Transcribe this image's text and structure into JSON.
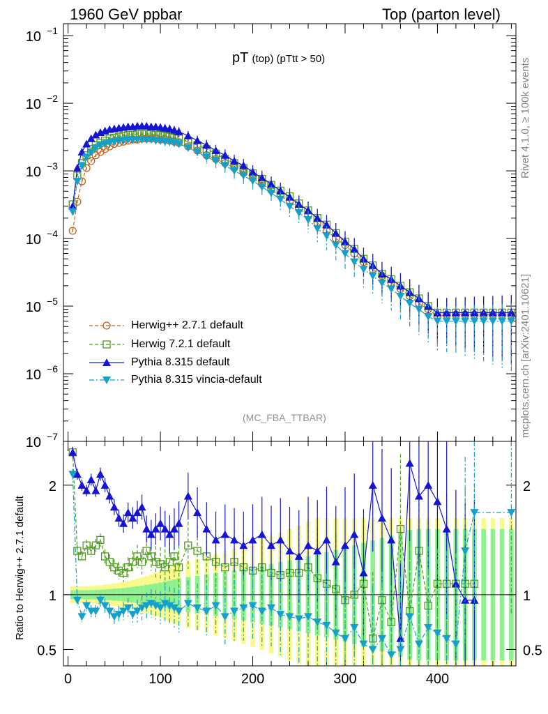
{
  "header": {
    "left": "1960 GeV ppbar",
    "right": "Top (parton level)"
  },
  "side_labels": {
    "rivet": "Rivet 4.1.0, ≥ 100k events",
    "mcplots": "mcplots.cern.ch [arXiv:2401.10621]"
  },
  "plot_title": {
    "main": "pT",
    "sub": "(top) (pTtt > 50)"
  },
  "analysis_tag": "(MC_FBA_TTBAR)",
  "ratio_ylabel": "Ratio to Herwig++ 2.7.1 default",
  "colors": {
    "herwigpp": "#c0641e",
    "herwig7": "#4f9a1e",
    "pythia": "#1414d2",
    "vincia": "#14a0c8",
    "band_inner": "#8ff08f",
    "band_outer": "#fafa8c"
  },
  "chart_data": [
    {
      "type": "scatter",
      "panel": "main",
      "yscale": "log",
      "xlim": [
        -5,
        485
      ],
      "ylim": [
        1e-07,
        0.15
      ],
      "yticks": [
        {
          "value": 1e-07,
          "label_base": "10",
          "label_exp": "−7"
        },
        {
          "value": 1e-06,
          "label_base": "10",
          "label_exp": "−6"
        },
        {
          "value": 1e-05,
          "label_base": "10",
          "label_exp": "−5"
        },
        {
          "value": 0.0001,
          "label_base": "10",
          "label_exp": "−4"
        },
        {
          "value": 0.001,
          "label_base": "10",
          "label_exp": "−3"
        },
        {
          "value": 0.01,
          "label_base": "10",
          "label_exp": "−2"
        },
        {
          "value": 0.1,
          "label_base": "10",
          "label_exp": "−1"
        }
      ],
      "legend_position": "middle-left",
      "series": [
        {
          "name": "Herwig++ 2.7.1 default",
          "marker": "open-circle",
          "line": "dashed",
          "x": [
            5,
            10,
            15,
            20,
            25,
            30,
            35,
            40,
            45,
            50,
            55,
            60,
            65,
            70,
            75,
            80,
            85,
            90,
            95,
            100,
            105,
            110,
            115,
            120,
            130,
            140,
            150,
            160,
            170,
            180,
            190,
            200,
            210,
            220,
            230,
            240,
            250,
            260,
            270,
            280,
            290,
            300,
            310,
            320,
            330,
            340,
            350,
            360,
            370,
            380,
            390,
            400,
            410,
            420,
            430,
            440,
            450,
            460,
            470,
            480
          ],
          "y": [
            0.00013,
            0.00035,
            0.0007,
            0.0011,
            0.0014,
            0.0017,
            0.0019,
            0.0021,
            0.0023,
            0.0025,
            0.0026,
            0.0027,
            0.0028,
            0.0029,
            0.0029,
            0.003,
            0.003,
            0.003,
            0.003,
            0.0029,
            0.0029,
            0.0028,
            0.0027,
            0.0026,
            0.0023,
            0.002,
            0.0017,
            0.0015,
            0.0013,
            0.0011,
            0.00093,
            0.00078,
            0.00064,
            0.00052,
            0.00043,
            0.00035,
            0.00028,
            0.00022,
            0.00017,
            0.00013,
            0.0001,
            8e-05,
            6e-05,
            4.5e-05,
            3.5e-05,
            2.8e-05,
            2.2e-05,
            1.8e-05,
            1.4e-05,
            1.1e-05,
            9e-06,
            7e-06,
            7.5e-06,
            7.5e-06,
            7.5e-06,
            7.5e-06,
            7.5e-06,
            7.5e-06,
            7.5e-06,
            7.5e-06
          ]
        },
        {
          "name": "Herwig 7.2.1 default",
          "marker": "open-square",
          "line": "dashed",
          "x": [
            5,
            10,
            15,
            20,
            25,
            30,
            35,
            40,
            45,
            50,
            55,
            60,
            65,
            70,
            75,
            80,
            85,
            90,
            95,
            100,
            105,
            110,
            115,
            120,
            130,
            140,
            150,
            160,
            170,
            180,
            190,
            200,
            210,
            220,
            230,
            240,
            250,
            260,
            270,
            280,
            290,
            300,
            310,
            320,
            330,
            340,
            350,
            360,
            370,
            380,
            390,
            400,
            410,
            420,
            430,
            440,
            450,
            460,
            470,
            480
          ],
          "y": [
            0.00032,
            0.00085,
            0.0013,
            0.0017,
            0.0021,
            0.0024,
            0.0026,
            0.0028,
            0.003,
            0.0031,
            0.0032,
            0.0033,
            0.0034,
            0.0034,
            0.0035,
            0.0035,
            0.0035,
            0.0035,
            0.0034,
            0.0034,
            0.0033,
            0.0032,
            0.0031,
            0.003,
            0.0027,
            0.0024,
            0.0021,
            0.0018,
            0.0015,
            0.0013,
            0.0011,
            0.00092,
            0.00076,
            0.00062,
            0.00051,
            0.00042,
            0.00033,
            0.00026,
            0.0002,
            0.00016,
            0.00012,
            9e-05,
            7e-05,
            5e-05,
            4e-05,
            3e-05,
            2.5e-05,
            2e-05,
            1.6e-05,
            1.3e-05,
            1e-05,
            8e-06,
            8e-06,
            8e-06,
            8e-06,
            8e-06,
            8e-06,
            8e-06,
            8e-06,
            8e-06
          ]
        },
        {
          "name": "Pythia 8.315 default",
          "marker": "filled-triangle-up",
          "line": "solid",
          "x": [
            5,
            10,
            15,
            20,
            25,
            30,
            35,
            40,
            45,
            50,
            55,
            60,
            65,
            70,
            75,
            80,
            85,
            90,
            95,
            100,
            105,
            110,
            115,
            120,
            130,
            140,
            150,
            160,
            170,
            180,
            190,
            200,
            210,
            220,
            230,
            240,
            250,
            260,
            270,
            280,
            290,
            300,
            310,
            320,
            330,
            340,
            350,
            360,
            370,
            380,
            390,
            400,
            410,
            420,
            430,
            440,
            450,
            460,
            470,
            480
          ],
          "y": [
            0.0003,
            0.0011,
            0.0019,
            0.0025,
            0.003,
            0.0034,
            0.0037,
            0.0039,
            0.0041,
            0.0042,
            0.0043,
            0.0044,
            0.0045,
            0.0045,
            0.0046,
            0.0046,
            0.0046,
            0.0045,
            0.0045,
            0.0044,
            0.0043,
            0.0042,
            0.004,
            0.0038,
            0.0033,
            0.0028,
            0.0024,
            0.002,
            0.0017,
            0.0014,
            0.0012,
            0.00096,
            0.00079,
            0.00064,
            0.00051,
            0.00041,
            0.00032,
            0.00026,
            0.0002,
            0.00016,
            0.00012,
            9e-05,
            7e-05,
            5e-05,
            4e-05,
            3e-05,
            2.5e-05,
            2e-05,
            1.6e-05,
            1.3e-05,
            1e-05,
            8e-06,
            8e-06,
            8e-06,
            8e-06,
            8e-06,
            8e-06,
            8e-06,
            8e-06,
            8e-06
          ]
        },
        {
          "name": "Pythia 8.315 vincia-default",
          "marker": "filled-triangle-down",
          "line": "dash-dot",
          "x": [
            5,
            10,
            15,
            20,
            25,
            30,
            35,
            40,
            45,
            50,
            55,
            60,
            65,
            70,
            75,
            80,
            85,
            90,
            95,
            100,
            105,
            110,
            115,
            120,
            130,
            140,
            150,
            160,
            170,
            180,
            190,
            200,
            210,
            220,
            230,
            240,
            250,
            260,
            270,
            280,
            290,
            300,
            310,
            320,
            330,
            340,
            350,
            360,
            370,
            380,
            390,
            400,
            410,
            420,
            430,
            440,
            450,
            460,
            470,
            480
          ],
          "y": [
            0.00025,
            0.0007,
            0.0012,
            0.0016,
            0.0019,
            0.0022,
            0.0024,
            0.0025,
            0.0026,
            0.0027,
            0.0028,
            0.0028,
            0.0029,
            0.0029,
            0.0029,
            0.0029,
            0.0029,
            0.0029,
            0.0028,
            0.0028,
            0.0027,
            0.0027,
            0.0026,
            0.0025,
            0.0022,
            0.0019,
            0.0016,
            0.0014,
            0.0012,
            0.001,
            0.00085,
            0.00071,
            0.00058,
            0.00047,
            0.00038,
            0.0003,
            0.00024,
            0.00019,
            0.00014,
            0.00011,
            8e-05,
            6e-05,
            4.5e-05,
            3.5e-05,
            2.8e-05,
            2.2e-05,
            1.8e-05,
            1.4e-05,
            1.1e-05,
            9e-06,
            7e-06,
            6e-06,
            6e-06,
            6e-06,
            6e-06,
            6e-06,
            6e-06,
            6e-06,
            6e-06,
            6e-06
          ]
        }
      ]
    },
    {
      "type": "scatter",
      "panel": "ratio",
      "ylabel": "Ratio to Herwig++ 2.7.1 default",
      "xlim": [
        -5,
        485
      ],
      "ylim": [
        0.35,
        2.4
      ],
      "yticks": [
        {
          "value": 0.5,
          "label": "0.5"
        },
        {
          "value": 1,
          "label": "1"
        },
        {
          "value": 2,
          "label": "2"
        }
      ],
      "xticks": [
        {
          "value": 0,
          "label": "0"
        },
        {
          "value": 100,
          "label": "100"
        },
        {
          "value": 200,
          "label": "200"
        },
        {
          "value": 300,
          "label": "300"
        },
        {
          "value": 400,
          "label": "400"
        }
      ],
      "reference_line": 1,
      "series": [
        {
          "name": "Herwig 7.2.1 default",
          "x": [
            5,
            10,
            15,
            20,
            25,
            30,
            35,
            40,
            45,
            50,
            55,
            60,
            65,
            70,
            75,
            80,
            85,
            90,
            95,
            100,
            105,
            110,
            115,
            120,
            130,
            140,
            150,
            160,
            170,
            180,
            190,
            200,
            210,
            220,
            230,
            240,
            250,
            260,
            270,
            280,
            290,
            300,
            310,
            320,
            330,
            340,
            350,
            360,
            370,
            380,
            390,
            400,
            410,
            420,
            430,
            440
          ],
          "y": [
            2.3,
            1.4,
            1.35,
            1.45,
            1.4,
            1.45,
            1.5,
            1.35,
            1.3,
            1.25,
            1.22,
            1.2,
            1.25,
            1.3,
            1.35,
            1.3,
            1.4,
            1.35,
            1.3,
            1.28,
            1.25,
            1.3,
            1.35,
            1.25,
            1.45,
            1.4,
            1.35,
            1.3,
            1.25,
            1.3,
            1.25,
            1.22,
            1.25,
            1.2,
            1.18,
            1.2,
            1.2,
            1.25,
            1.15,
            1.1,
            1.05,
            0.95,
            1.0,
            1.1,
            0.6,
            0.95,
            0.75,
            1.6,
            0.85,
            1.4,
            0.9,
            1.1,
            1.1,
            1.1,
            1.1,
            1.1
          ]
        },
        {
          "name": "Pythia 8.315 default",
          "x": [
            5,
            10,
            15,
            20,
            25,
            30,
            35,
            40,
            45,
            50,
            55,
            60,
            65,
            70,
            75,
            80,
            85,
            90,
            95,
            100,
            105,
            110,
            115,
            120,
            130,
            140,
            150,
            160,
            170,
            180,
            190,
            200,
            210,
            220,
            230,
            240,
            250,
            260,
            270,
            280,
            290,
            300,
            310,
            320,
            330,
            340,
            350,
            360,
            370,
            380,
            390,
            400,
            410,
            420,
            430,
            440
          ],
          "y": [
            2.3,
            2.1,
            2.0,
            1.95,
            2.05,
            1.95,
            2.1,
            2.0,
            1.9,
            1.8,
            1.7,
            1.65,
            1.75,
            1.7,
            1.75,
            1.8,
            1.6,
            1.55,
            1.6,
            1.65,
            1.6,
            1.55,
            1.6,
            1.65,
            1.9,
            1.75,
            1.6,
            1.5,
            1.55,
            1.5,
            1.45,
            1.5,
            1.55,
            1.45,
            1.5,
            1.4,
            1.35,
            1.45,
            1.4,
            1.5,
            1.3,
            1.45,
            1.55,
            1.2,
            2.0,
            1.7,
            1.5,
            0.6,
            2.2,
            1.9,
            2.0,
            1.85,
            1.6,
            1.1,
            0.95,
            0.95
          ]
        },
        {
          "name": "Pythia 8.315 vincia-default",
          "x": [
            5,
            10,
            15,
            20,
            25,
            30,
            35,
            40,
            45,
            50,
            55,
            60,
            65,
            70,
            75,
            80,
            85,
            90,
            95,
            100,
            105,
            110,
            115,
            120,
            130,
            140,
            150,
            160,
            170,
            180,
            190,
            200,
            210,
            220,
            230,
            240,
            250,
            260,
            270,
            280,
            290,
            300,
            310,
            320,
            330,
            340,
            350,
            360,
            370,
            380,
            390,
            400,
            410,
            420,
            430,
            440,
            480
          ],
          "y": [
            2.1,
            0.95,
            0.8,
            0.9,
            0.85,
            0.85,
            0.95,
            0.9,
            0.85,
            0.8,
            0.82,
            0.85,
            0.88,
            0.82,
            0.85,
            0.88,
            0.9,
            0.92,
            0.9,
            0.88,
            0.92,
            0.9,
            0.88,
            0.85,
            0.92,
            0.88,
            0.85,
            0.9,
            0.8,
            0.85,
            0.88,
            0.9,
            0.85,
            0.88,
            0.82,
            0.8,
            0.78,
            0.8,
            0.75,
            0.72,
            0.65,
            0.6,
            0.7,
            0.55,
            0.5,
            0.6,
            0.45,
            0.5,
            0.8,
            0.55,
            0.7,
            0.65,
            0.6,
            0.55,
            1.4,
            1.75,
            1.75
          ]
        }
      ]
    }
  ]
}
